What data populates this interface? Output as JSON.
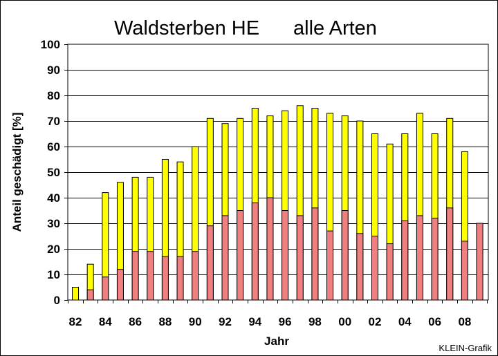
{
  "chart_data": {
    "type": "bar",
    "stacked": false,
    "overlay": true,
    "title_part1": "Waldsterben HE",
    "title_part2": "alle Arten",
    "xlabel": "Jahr",
    "ylabel": "Anteil geschädigt [%]",
    "ylim": [
      0,
      100
    ],
    "yticks": [
      0,
      10,
      20,
      30,
      40,
      50,
      60,
      70,
      80,
      90,
      100
    ],
    "grid": true,
    "x_years": [
      "1982",
      "1983",
      "1984",
      "1985",
      "1986",
      "1987",
      "1988",
      "1989",
      "1990",
      "1991",
      "1992",
      "1993",
      "1994",
      "1995",
      "1996",
      "1997",
      "1998",
      "1999",
      "2000",
      "2001",
      "2002",
      "2003",
      "2004",
      "2005",
      "2006",
      "2007",
      "2008",
      "2009"
    ],
    "xtick_labels": [
      "82",
      "84",
      "86",
      "88",
      "90",
      "92",
      "94",
      "96",
      "98",
      "00",
      "02",
      "04",
      "06",
      "08"
    ],
    "series": [
      {
        "color": "#ffff00",
        "values": [
          5,
          14,
          42,
          46,
          48,
          48,
          55,
          54,
          60,
          71,
          69,
          71,
          75,
          72,
          74,
          76,
          75,
          73,
          72,
          70,
          65,
          61,
          65,
          73,
          65,
          71,
          58,
          30
        ]
      },
      {
        "color": "#f08080",
        "values": [
          0,
          4,
          9,
          12,
          19,
          19,
          17,
          17,
          19,
          29,
          33,
          35,
          38,
          40,
          35,
          33,
          36,
          27,
          35,
          26,
          25,
          22,
          31,
          33,
          32,
          36,
          23,
          30
        ]
      }
    ],
    "credit": "KLEIN-Grafik"
  }
}
